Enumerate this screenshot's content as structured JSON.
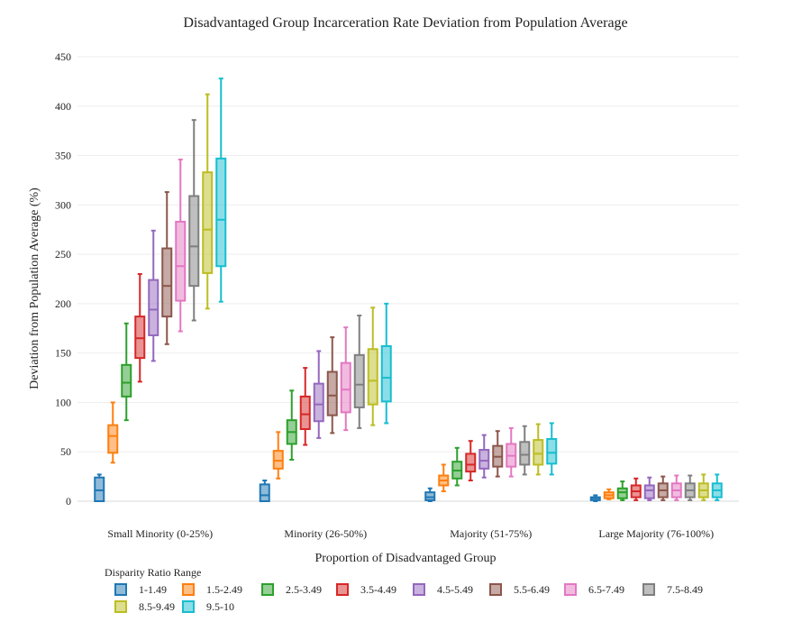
{
  "chart_data": {
    "type": "box",
    "title": "Disadvantaged Group Incarceration Rate Deviation from Population Average",
    "xlabel": "Proportion of Disadvantaged Group",
    "ylabel": "Deviation from Population Average (%)",
    "ylim": [
      -12,
      455
    ],
    "yticks": [
      0,
      50,
      100,
      150,
      200,
      250,
      300,
      350,
      400,
      450
    ],
    "grid": true,
    "categories": [
      "Small Minority (0-25%)",
      "Minority (26-50%)",
      "Majority (51-75%)",
      "Large Majority (76-100%)"
    ],
    "legend": {
      "title": "Disparity Ratio Range",
      "placement": "bottom-left"
    },
    "series": [
      {
        "name": "1-1.49",
        "color": "#1f77b4",
        "boxes": [
          {
            "min": 0,
            "q1": 0,
            "median": 11,
            "q3": 24,
            "max": 27
          },
          {
            "min": 0,
            "q1": 0,
            "median": 6,
            "q3": 17,
            "max": 21
          },
          {
            "min": 0,
            "q1": 1,
            "median": 4,
            "q3": 9,
            "max": 13
          },
          {
            "min": 0,
            "q1": 1,
            "median": 3,
            "q3": 4,
            "max": 6
          }
        ]
      },
      {
        "name": "1.5-2.49",
        "color": "#ff7f0e",
        "boxes": [
          {
            "min": 39,
            "q1": 49,
            "median": 66,
            "q3": 77,
            "max": 100
          },
          {
            "min": 23,
            "q1": 33,
            "median": 41,
            "q3": 51,
            "max": 70
          },
          {
            "min": 10,
            "q1": 16,
            "median": 21,
            "q3": 26,
            "max": 37
          },
          {
            "min": 2,
            "q1": 3,
            "median": 6,
            "q3": 9,
            "max": 12
          }
        ]
      },
      {
        "name": "2.5-3.49",
        "color": "#2ca02c",
        "boxes": [
          {
            "min": 82,
            "q1": 106,
            "median": 120,
            "q3": 138,
            "max": 180
          },
          {
            "min": 42,
            "q1": 58,
            "median": 70,
            "q3": 82,
            "max": 112
          },
          {
            "min": 16,
            "q1": 23,
            "median": 31,
            "q3": 40,
            "max": 54
          },
          {
            "min": 1,
            "q1": 3,
            "median": 9,
            "q3": 13,
            "max": 20
          }
        ]
      },
      {
        "name": "3.5-4.49",
        "color": "#d62728",
        "boxes": [
          {
            "min": 121,
            "q1": 145,
            "median": 165,
            "q3": 187,
            "max": 230
          },
          {
            "min": 57,
            "q1": 73,
            "median": 88,
            "q3": 106,
            "max": 135
          },
          {
            "min": 21,
            "q1": 30,
            "median": 37,
            "q3": 48,
            "max": 61
          },
          {
            "min": 1,
            "q1": 4,
            "median": 10,
            "q3": 16,
            "max": 23
          }
        ]
      },
      {
        "name": "4.5-5.49",
        "color": "#9467bd",
        "boxes": [
          {
            "min": 142,
            "q1": 168,
            "median": 194,
            "q3": 224,
            "max": 274
          },
          {
            "min": 64,
            "q1": 81,
            "median": 98,
            "q3": 119,
            "max": 152
          },
          {
            "min": 24,
            "q1": 33,
            "median": 41,
            "q3": 52,
            "max": 67
          },
          {
            "min": 1,
            "q1": 3,
            "median": 11,
            "q3": 16,
            "max": 24
          }
        ]
      },
      {
        "name": "5.5-6.49",
        "color": "#8c564b",
        "boxes": [
          {
            "min": 159,
            "q1": 187,
            "median": 218,
            "q3": 256,
            "max": 313
          },
          {
            "min": 69,
            "q1": 87,
            "median": 107,
            "q3": 131,
            "max": 166
          },
          {
            "min": 25,
            "q1": 35,
            "median": 45,
            "q3": 56,
            "max": 71
          },
          {
            "min": 1,
            "q1": 4,
            "median": 11,
            "q3": 18,
            "max": 25
          }
        ]
      },
      {
        "name": "6.5-7.49",
        "color": "#e377c2",
        "boxes": [
          {
            "min": 172,
            "q1": 203,
            "median": 238,
            "q3": 283,
            "max": 346
          },
          {
            "min": 72,
            "q1": 90,
            "median": 113,
            "q3": 140,
            "max": 176
          },
          {
            "min": 25,
            "q1": 35,
            "median": 46,
            "q3": 58,
            "max": 74
          },
          {
            "min": 1,
            "q1": 4,
            "median": 11,
            "q3": 18,
            "max": 26
          }
        ]
      },
      {
        "name": "7.5-8.49",
        "color": "#7f7f7f",
        "boxes": [
          {
            "min": 183,
            "q1": 218,
            "median": 258,
            "q3": 309,
            "max": 386
          },
          {
            "min": 74,
            "q1": 95,
            "median": 118,
            "q3": 148,
            "max": 188
          },
          {
            "min": 27,
            "q1": 37,
            "median": 47,
            "q3": 60,
            "max": 76
          },
          {
            "min": 1,
            "q1": 4,
            "median": 11,
            "q3": 18,
            "max": 26
          }
        ]
      },
      {
        "name": "8.5-9.49",
        "color": "#bcbd22",
        "boxes": [
          {
            "min": 195,
            "q1": 231,
            "median": 275,
            "q3": 333,
            "max": 412
          },
          {
            "min": 77,
            "q1": 98,
            "median": 122,
            "q3": 154,
            "max": 196
          },
          {
            "min": 27,
            "q1": 37,
            "median": 48,
            "q3": 62,
            "max": 78
          },
          {
            "min": 1,
            "q1": 4,
            "median": 11,
            "q3": 18,
            "max": 27
          }
        ]
      },
      {
        "name": "9.5-10",
        "color": "#17becf",
        "boxes": [
          {
            "min": 202,
            "q1": 238,
            "median": 285,
            "q3": 347,
            "max": 428
          },
          {
            "min": 79,
            "q1": 101,
            "median": 125,
            "q3": 157,
            "max": 200
          },
          {
            "min": 27,
            "q1": 38,
            "median": 49,
            "q3": 63,
            "max": 79
          },
          {
            "min": 1,
            "q1": 4,
            "median": 11,
            "q3": 18,
            "max": 27
          }
        ]
      }
    ]
  }
}
